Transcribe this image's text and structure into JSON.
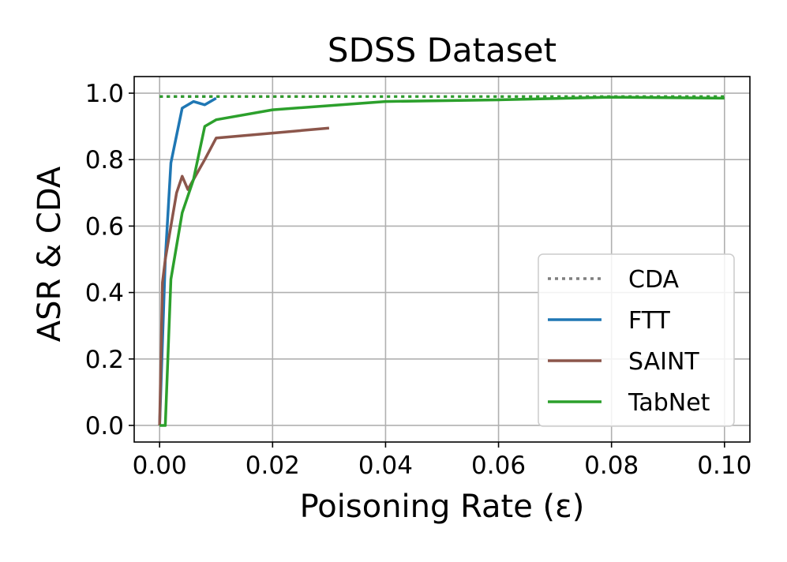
{
  "chart_data": {
    "type": "line",
    "title": "SDSS Dataset",
    "xlabel": "Poisoning Rate (ε)",
    "ylabel": "ASR & CDA",
    "xlim": [
      -0.0045,
      0.1045
    ],
    "ylim": [
      -0.05,
      1.05
    ],
    "x_ticks": [
      0.0,
      0.02,
      0.04,
      0.06,
      0.08,
      0.1
    ],
    "x_tick_labels": [
      "0.00",
      "0.02",
      "0.04",
      "0.06",
      "0.08",
      "0.10"
    ],
    "y_ticks": [
      0.0,
      0.2,
      0.4,
      0.6,
      0.8,
      1.0
    ],
    "y_tick_labels": [
      "0.0",
      "0.2",
      "0.4",
      "0.6",
      "0.8",
      "1.0"
    ],
    "grid": true,
    "legend_position": "lower-right",
    "series": [
      {
        "name": "CDA",
        "color": "#7f7f7f",
        "style": "dotted",
        "role": "cda",
        "x": [
          0.0,
          0.1
        ],
        "y": [
          0.99,
          0.99
        ]
      },
      {
        "name": "CDA",
        "color": "#1f77b4",
        "style": "dotted",
        "role": "cda",
        "in_legend": false,
        "x": [
          0.0,
          0.01
        ],
        "y": [
          0.99,
          0.99
        ]
      },
      {
        "name": "CDA",
        "color": "#8c564b",
        "style": "dotted",
        "role": "cda",
        "in_legend": false,
        "x": [
          0.0,
          0.03
        ],
        "y": [
          0.99,
          0.99
        ]
      },
      {
        "name": "CDA",
        "color": "#2ca02c",
        "style": "dotted",
        "role": "cda",
        "in_legend": false,
        "x": [
          0.0,
          0.1
        ],
        "y": [
          0.99,
          0.99
        ]
      },
      {
        "name": "FTT",
        "color": "#1f77b4",
        "style": "solid",
        "x": [
          0.0,
          0.0005,
          0.001,
          0.002,
          0.004,
          0.006,
          0.008,
          0.01
        ],
        "y": [
          0.0,
          0.25,
          0.5,
          0.79,
          0.955,
          0.975,
          0.965,
          0.985
        ]
      },
      {
        "name": "SAINT",
        "color": "#8c564b",
        "style": "solid",
        "x": [
          0.0,
          0.0005,
          0.001,
          0.002,
          0.003,
          0.004,
          0.005,
          0.006,
          0.008,
          0.01,
          0.02,
          0.03
        ],
        "y": [
          0.0,
          0.43,
          0.5,
          0.6,
          0.7,
          0.75,
          0.71,
          0.74,
          0.8,
          0.865,
          0.88,
          0.895
        ]
      },
      {
        "name": "TabNet",
        "color": "#2ca02c",
        "style": "solid",
        "x": [
          0.0,
          0.0005,
          0.001,
          0.002,
          0.004,
          0.006,
          0.008,
          0.01,
          0.02,
          0.04,
          0.06,
          0.08,
          0.1
        ],
        "y": [
          0.0,
          0.0,
          0.0,
          0.44,
          0.64,
          0.74,
          0.9,
          0.92,
          0.95,
          0.975,
          0.98,
          0.988,
          0.985
        ]
      }
    ]
  }
}
